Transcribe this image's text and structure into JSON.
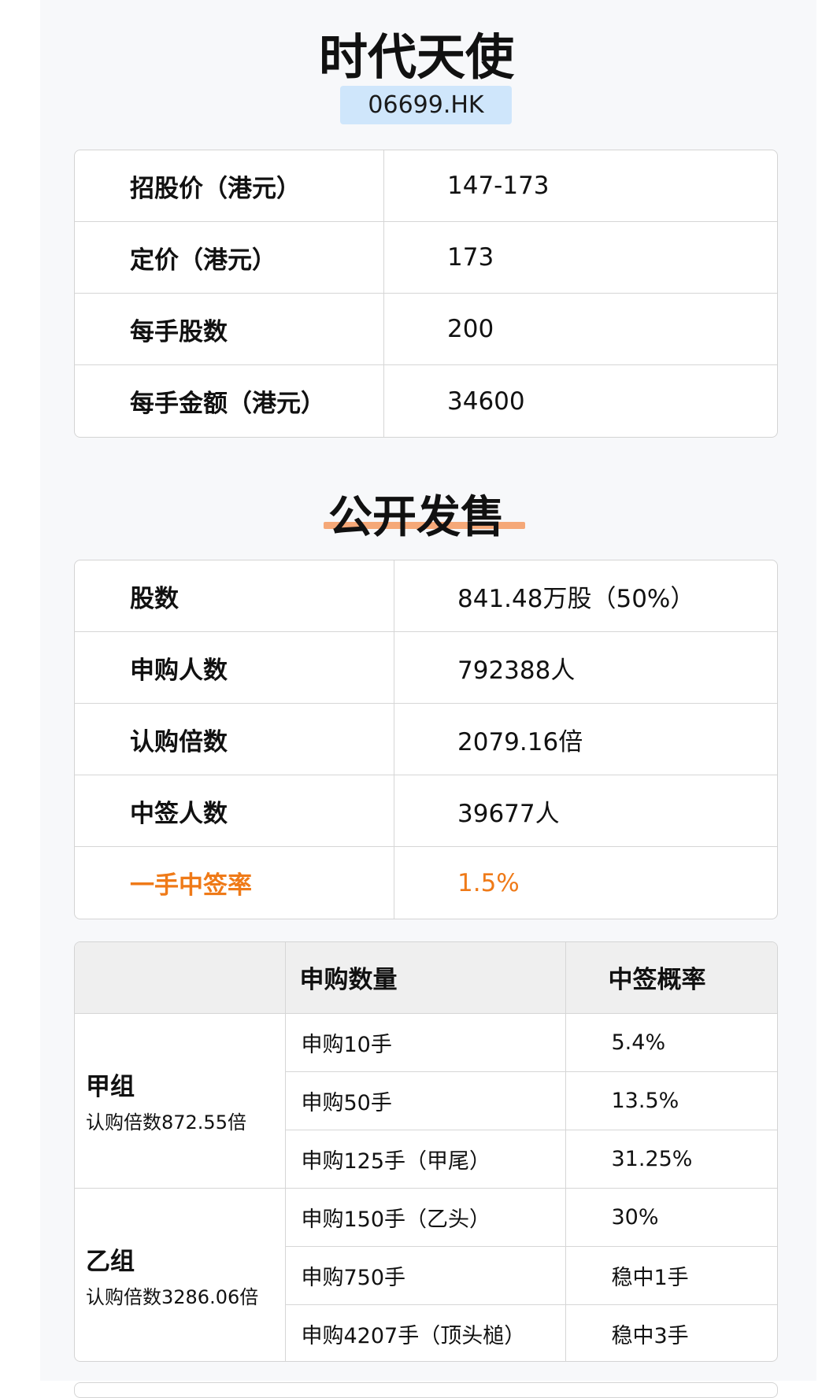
{
  "header": {
    "title": "时代天使",
    "code": "06699.HK"
  },
  "basic": [
    {
      "label": "招股价（港元）",
      "value": "147-173"
    },
    {
      "label": "定价（港元）",
      "value": "173"
    },
    {
      "label": "每手股数",
      "value": "200"
    },
    {
      "label": "每手金额（港元）",
      "value": "34600"
    }
  ],
  "public_offer": {
    "title": "公开发售",
    "highlight_color": "#ef7a18",
    "rows": [
      {
        "label": "股数",
        "value": "841.48万股（50%）"
      },
      {
        "label": "申购人数",
        "value": "792388人"
      },
      {
        "label": "认购倍数",
        "value": "2079.16倍"
      },
      {
        "label": "中签人数",
        "value": "39677人"
      },
      {
        "label": "一手中签率",
        "value": "1.5%"
      }
    ]
  },
  "allotment": {
    "headers": [
      "",
      "申购数量",
      "中签概率"
    ],
    "groups": [
      {
        "name": "甲组",
        "subtitle": "认购倍数872.55倍",
        "rows": [
          {
            "qty": "申购10手",
            "prob": "5.4%"
          },
          {
            "qty": "申购50手",
            "prob": "13.5%"
          },
          {
            "qty": "申购125手（甲尾）",
            "prob": "31.25%"
          }
        ]
      },
      {
        "name": "乙组",
        "subtitle": "认购倍数3286.06倍",
        "rows": [
          {
            "qty": "申购150手（乙头）",
            "prob": "30%"
          },
          {
            "qty": "申购750手",
            "prob": "稳中1手"
          },
          {
            "qty": "申购4207手（顶头槌）",
            "prob": "稳中3手"
          }
        ]
      }
    ]
  }
}
